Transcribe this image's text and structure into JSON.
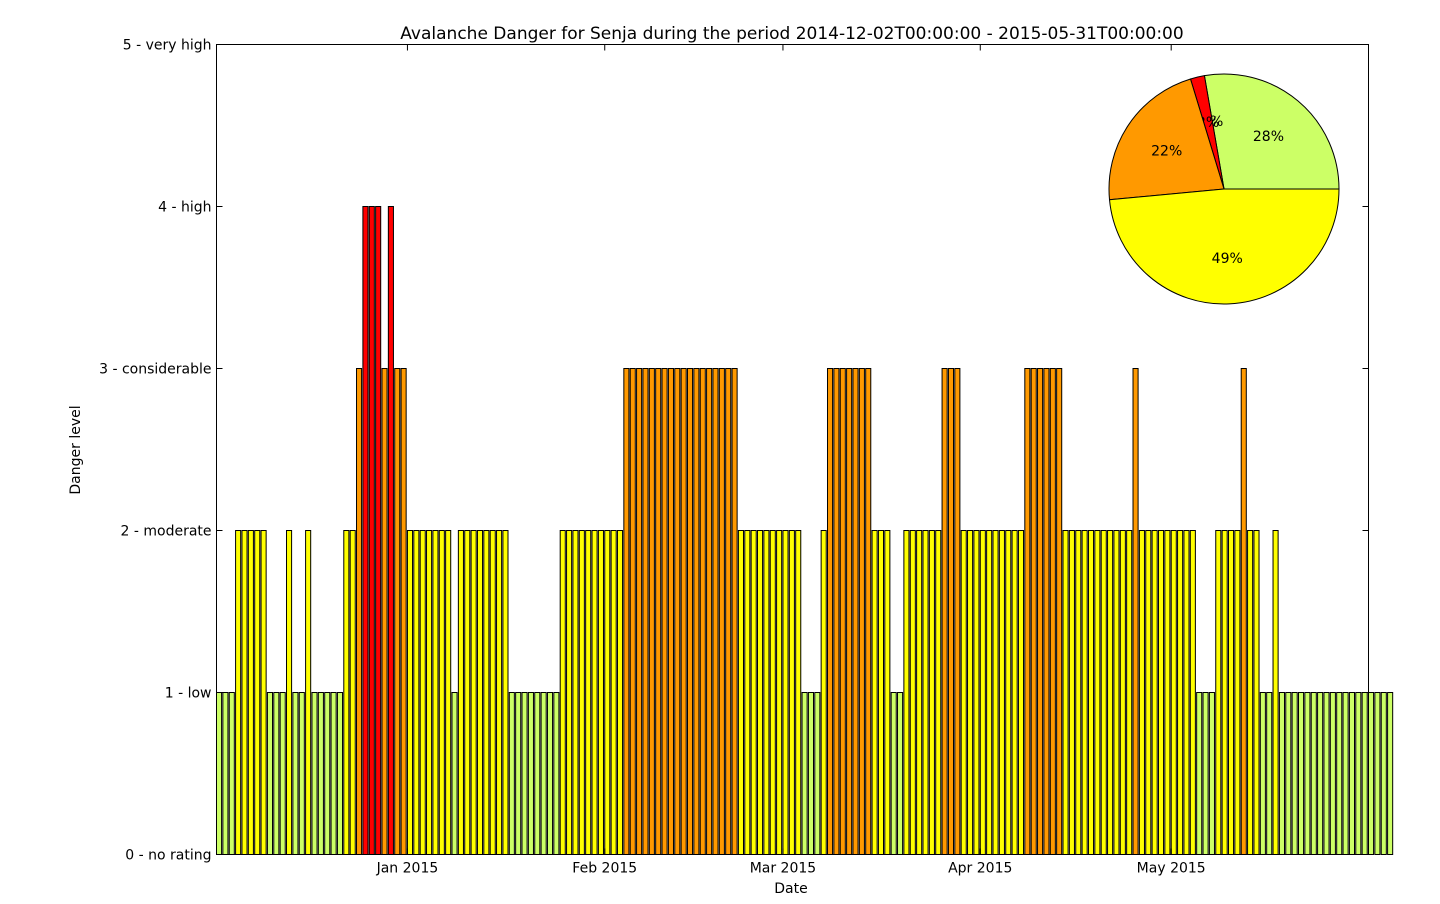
{
  "chart_data": [
    {
      "type": "bar",
      "title": "Avalanche Danger for Senja during the period 2014-12-02T00:00:00 - 2015-05-31T00:00:00",
      "xlabel": "Date",
      "ylabel": "Danger level",
      "ylim": [
        0,
        5
      ],
      "xlim": [
        "2014-12-02",
        "2015-05-31"
      ],
      "grid": false,
      "y_ticks": [
        {
          "value": 0,
          "label": "0 - no rating"
        },
        {
          "value": 1,
          "label": "1 - low"
        },
        {
          "value": 2,
          "label": "2 - moderate"
        },
        {
          "value": 3,
          "label": "3 - considerable"
        },
        {
          "value": 4,
          "label": "4 - high"
        },
        {
          "value": 5,
          "label": "5 - very high"
        }
      ],
      "x_ticks": [
        {
          "date": "2015-01-01",
          "label": "Jan 2015"
        },
        {
          "date": "2015-02-01",
          "label": "Feb 2015"
        },
        {
          "date": "2015-03-01",
          "label": "Mar 2015"
        },
        {
          "date": "2015-04-01",
          "label": "Apr 2015"
        },
        {
          "date": "2015-05-01",
          "label": "May 2015"
        }
      ],
      "level_colors": {
        "1": "#ccff66",
        "2": "#ffff00",
        "3": "#ff9900",
        "4": "#ff0000",
        "5": "#000000"
      },
      "start_date": "2014-12-02",
      "values": [
        1,
        1,
        1,
        2,
        2,
        2,
        2,
        2,
        1,
        1,
        1,
        2,
        1,
        1,
        2,
        1,
        1,
        1,
        1,
        1,
        2,
        2,
        3,
        4,
        4,
        4,
        3,
        4,
        3,
        3,
        2,
        2,
        2,
        2,
        2,
        2,
        2,
        1,
        2,
        2,
        2,
        2,
        2,
        2,
        2,
        2,
        1,
        1,
        1,
        1,
        1,
        1,
        1,
        1,
        2,
        2,
        2,
        2,
        2,
        2,
        2,
        2,
        2,
        2,
        3,
        3,
        3,
        3,
        3,
        3,
        3,
        3,
        3,
        3,
        3,
        3,
        3,
        3,
        3,
        3,
        3,
        3,
        2,
        2,
        2,
        2,
        2,
        2,
        2,
        2,
        2,
        2,
        1,
        1,
        1,
        2,
        3,
        3,
        3,
        3,
        3,
        3,
        3,
        2,
        2,
        2,
        1,
        1,
        2,
        2,
        2,
        2,
        2,
        2,
        3,
        3,
        3,
        2,
        2,
        2,
        2,
        2,
        2,
        2,
        2,
        2,
        2,
        3,
        3,
        3,
        3,
        3,
        3,
        2,
        2,
        2,
        2,
        2,
        2,
        2,
        2,
        2,
        2,
        2,
        3,
        2,
        2,
        2,
        2,
        2,
        2,
        2,
        2,
        2,
        1,
        1,
        1,
        2,
        2,
        2,
        2,
        3,
        2,
        2,
        1,
        1,
        2,
        1,
        1,
        1,
        1,
        1,
        1,
        1,
        1,
        1,
        1,
        1,
        1,
        1,
        1,
        1,
        1,
        1,
        1
      ]
    },
    {
      "type": "pie",
      "labels": [
        "28%",
        "0%",
        "2%",
        "22%",
        "49%"
      ],
      "values": [
        28,
        0,
        2,
        22,
        49
      ],
      "colors": [
        "#ccff66",
        "#ff9900",
        "#ff0000",
        "#ff9900",
        "#ffff00"
      ],
      "placement": "top-right"
    }
  ]
}
